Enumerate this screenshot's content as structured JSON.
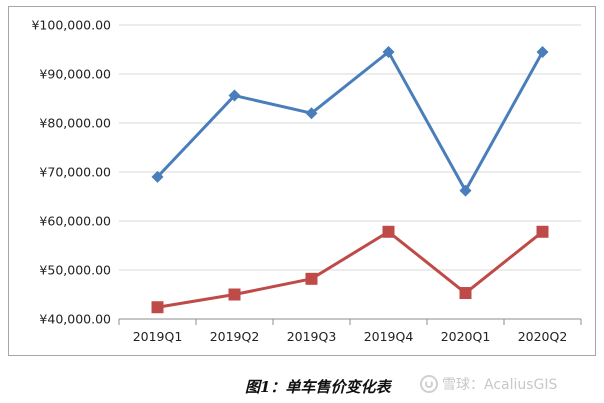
{
  "chart_data": {
    "type": "line",
    "categories": [
      "2019Q1",
      "2019Q2",
      "2019Q3",
      "2019Q4",
      "2020Q1",
      "2020Q2"
    ],
    "series": [
      {
        "values": [
          69000,
          85600,
          82000,
          94500,
          66200,
          94500
        ],
        "color": "#4a7ebb",
        "marker": "diamond"
      },
      {
        "values": [
          42400,
          45000,
          48200,
          57800,
          45300,
          57800
        ],
        "color": "#be4b48",
        "marker": "square"
      }
    ],
    "title": "",
    "xlabel": "",
    "ylabel": "",
    "ylim": [
      40000,
      100000
    ],
    "yticks": [
      {
        "value": 40000,
        "label": "¥40,000.00"
      },
      {
        "value": 50000,
        "label": "¥50,000.00"
      },
      {
        "value": 60000,
        "label": "¥60,000.00"
      },
      {
        "value": 70000,
        "label": "¥70,000.00"
      },
      {
        "value": 80000,
        "label": "¥80,000.00"
      },
      {
        "value": 90000,
        "label": "¥90,000.00"
      },
      {
        "value": 100000,
        "label": "¥100,000.00"
      }
    ],
    "grid": true,
    "legend": "none"
  },
  "caption": "图1：单车售价变化表",
  "watermark": "雪球：AcaliusGIS",
  "watermark_icon": "snowball-logo-icon"
}
